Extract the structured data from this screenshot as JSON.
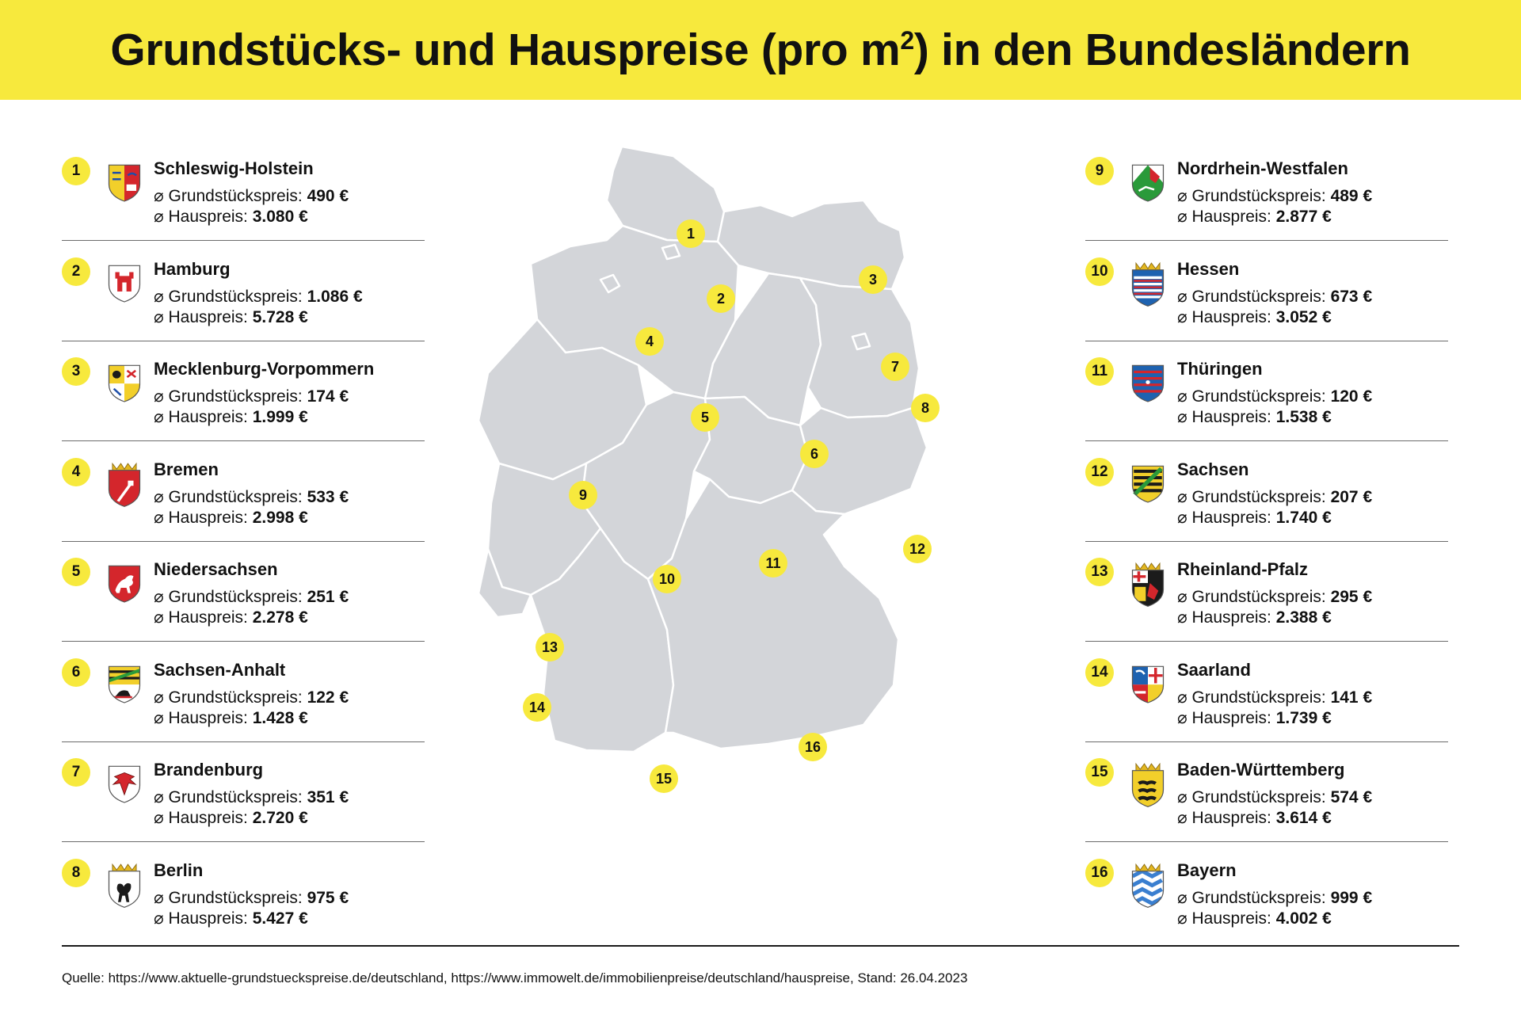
{
  "title": {
    "main": "Grundstücks- und Hauspreise (pro m",
    "sup": "2",
    "end": ") in den Bundesländern"
  },
  "labels": {
    "land": "Grundstückspreis:",
    "house": "Hauspreis:",
    "symbol": "⌀"
  },
  "colors": {
    "accent": "#f7e93d",
    "map_fill": "#d3d5d9",
    "map_border": "#ffffff"
  },
  "states": [
    {
      "number": "1",
      "name": "Schleswig-Holstein",
      "land_price": "490 €",
      "house_price": "3.080 €",
      "crest_icon": "schleswig-holstein-crest-icon"
    },
    {
      "number": "2",
      "name": "Hamburg",
      "land_price": "1.086 €",
      "house_price": "5.728 €",
      "crest_icon": "hamburg-crest-icon"
    },
    {
      "number": "3",
      "name": "Mecklenburg-Vorpommern",
      "land_price": "174 €",
      "house_price": "1.999 €",
      "crest_icon": "mecklenburg-vorpommern-crest-icon"
    },
    {
      "number": "4",
      "name": "Bremen",
      "land_price": "533 €",
      "house_price": "2.998 €",
      "crest_icon": "bremen-crest-icon"
    },
    {
      "number": "5",
      "name": "Niedersachsen",
      "land_price": "251 €",
      "house_price": "2.278 €",
      "crest_icon": "niedersachsen-crest-icon"
    },
    {
      "number": "6",
      "name": "Sachsen-Anhalt",
      "land_price": "122 €",
      "house_price": "1.428 €",
      "crest_icon": "sachsen-anhalt-crest-icon"
    },
    {
      "number": "7",
      "name": "Brandenburg",
      "land_price": "351 €",
      "house_price": "2.720 €",
      "crest_icon": "brandenburg-crest-icon"
    },
    {
      "number": "8",
      "name": "Berlin",
      "land_price": "975 €",
      "house_price": "5.427 €",
      "crest_icon": "berlin-crest-icon"
    },
    {
      "number": "9",
      "name": "Nordrhein-Westfalen",
      "land_price": "489 €",
      "house_price": "2.877 €",
      "crest_icon": "nordrhein-westfalen-crest-icon"
    },
    {
      "number": "10",
      "name": "Hessen",
      "land_price": "673 €",
      "house_price": "3.052 €",
      "crest_icon": "hessen-crest-icon"
    },
    {
      "number": "11",
      "name": "Thüringen",
      "land_price": "120 €",
      "house_price": "1.538 €",
      "crest_icon": "thueringen-crest-icon"
    },
    {
      "number": "12",
      "name": "Sachsen",
      "land_price": "207 €",
      "house_price": "1.740 €",
      "crest_icon": "sachsen-crest-icon"
    },
    {
      "number": "13",
      "name": "Rheinland-Pfalz",
      "land_price": "295 €",
      "house_price": "2.388 €",
      "crest_icon": "rheinland-pfalz-crest-icon"
    },
    {
      "number": "14",
      "name": "Saarland",
      "land_price": "141 €",
      "house_price": "1.739 €",
      "crest_icon": "saarland-crest-icon"
    },
    {
      "number": "15",
      "name": "Baden-Württemberg",
      "land_price": "574 €",
      "house_price": "3.614 €",
      "crest_icon": "baden-wuerttemberg-crest-icon"
    },
    {
      "number": "16",
      "name": "Bayern",
      "land_price": "999 €",
      "house_price": "4.002 €",
      "crest_icon": "bayern-crest-icon"
    }
  ],
  "map_markers": [
    "1",
    "2",
    "3",
    "4",
    "5",
    "6",
    "7",
    "8",
    "9",
    "10",
    "11",
    "12",
    "13",
    "14",
    "15",
    "16"
  ],
  "source": "Quelle: https://www.aktuelle-grundstueckspreise.de/deutschland, https://www.immowelt.de/immobilienpreise/deutschland/hauspreise, Stand: 26.04.2023"
}
